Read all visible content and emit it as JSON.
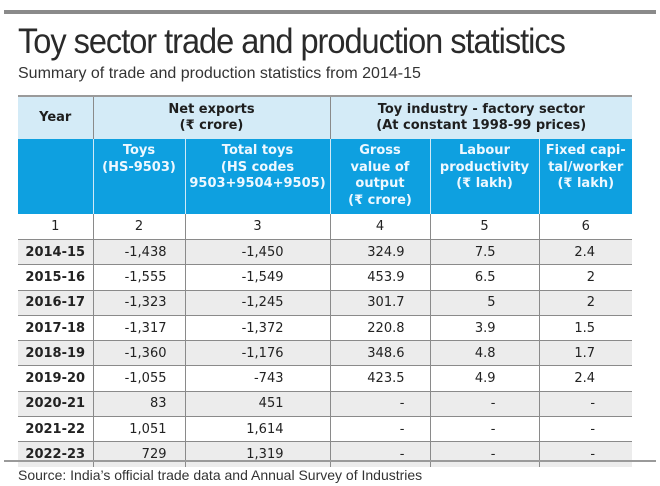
{
  "header": {
    "title": "Toy sector trade and production statistics",
    "subtitle": "Summary of trade and production statistics from 2014-15"
  },
  "colors": {
    "group_header_bg": "#d4ebf7",
    "sub_header_bg": "#0ea0e0",
    "stripe_bg": "#ececec",
    "top_bar": "#8a8a8a"
  },
  "table": {
    "group_headers": {
      "year": "Year",
      "net_exports_line1": "Net exports",
      "net_exports_line2": "(₹ crore)",
      "toy_industry_line1": "Toy industry - factory sector",
      "toy_industry_line2": "(At constant 1998-99 prices)"
    },
    "sub_headers": {
      "toys": [
        "Toys",
        "(HS-9503)"
      ],
      "total_toys": [
        "Total toys",
        "(HS codes",
        "9503+9504+9505)"
      ],
      "gross_value": [
        "Gross",
        "value of",
        "output",
        "(₹ crore)"
      ],
      "labour": [
        "Labour",
        "productivity",
        "(₹ lakh)"
      ],
      "fixed_capital": [
        "Fixed capi-",
        "tal/worker",
        "(₹ lakh)"
      ]
    },
    "column_numbers": [
      "1",
      "2",
      "3",
      "4",
      "5",
      "6"
    ],
    "rows": [
      {
        "year": "2014-15",
        "toys": "-1,438",
        "total": "-1,450",
        "gross": "324.9",
        "labour": "7.5",
        "fixed": "2.4"
      },
      {
        "year": "2015-16",
        "toys": "-1,555",
        "total": "-1,549",
        "gross": "453.9",
        "labour": "6.5",
        "fixed": "2"
      },
      {
        "year": "2016-17",
        "toys": "-1,323",
        "total": "-1,245",
        "gross": "301.7",
        "labour": "5",
        "fixed": "2"
      },
      {
        "year": "2017-18",
        "toys": "-1,317",
        "total": "-1,372",
        "gross": "220.8",
        "labour": "3.9",
        "fixed": "1.5"
      },
      {
        "year": "2018-19",
        "toys": "-1,360",
        "total": "-1,176",
        "gross": "348.6",
        "labour": "4.8",
        "fixed": "1.7"
      },
      {
        "year": "2019-20",
        "toys": "-1,055",
        "total": "-743",
        "gross": "423.5",
        "labour": "4.9",
        "fixed": "2.4"
      },
      {
        "year": "2020-21",
        "toys": "83",
        "total": "451",
        "gross": "-",
        "labour": "-",
        "fixed": "-"
      },
      {
        "year": "2021-22",
        "toys": "1,051",
        "total": "1,614",
        "gross": "-",
        "labour": "-",
        "fixed": "-"
      },
      {
        "year": "2022-23",
        "toys": "729",
        "total": "1,319",
        "gross": "-",
        "labour": "-",
        "fixed": "-"
      }
    ]
  },
  "footer": {
    "source": "Source: India’s official trade data and Annual Survey of Industries"
  }
}
